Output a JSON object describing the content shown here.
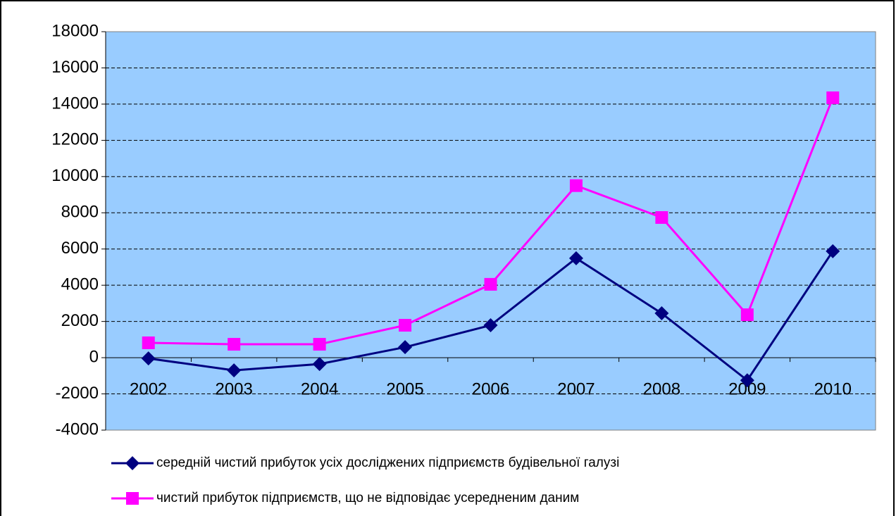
{
  "chart_data": {
    "type": "line",
    "categories": [
      "2002",
      "2003",
      "2004",
      "2005",
      "2006",
      "2007",
      "2008",
      "2009",
      "2010"
    ],
    "series": [
      {
        "name": "середній чистий прибуток усіх досліджених підприємств будівельної галузі",
        "color": "#000080",
        "marker": "diamond",
        "values": [
          -40,
          -700,
          -350,
          580,
          1790,
          5490,
          2450,
          -1250,
          5880
        ]
      },
      {
        "name": "чистий прибуток підприємств, що не відповідає усередненим даним",
        "color": "#ff00ff",
        "marker": "square",
        "values": [
          820,
          740,
          740,
          1790,
          4050,
          9500,
          7740,
          2370,
          14350
        ]
      }
    ],
    "ylim": [
      -4000,
      18000
    ],
    "yticks": [
      -4000,
      -2000,
      0,
      2000,
      4000,
      6000,
      8000,
      10000,
      12000,
      14000,
      16000,
      18000
    ],
    "grid": true,
    "legend": "bottom",
    "plot_background": "#99ccff"
  }
}
